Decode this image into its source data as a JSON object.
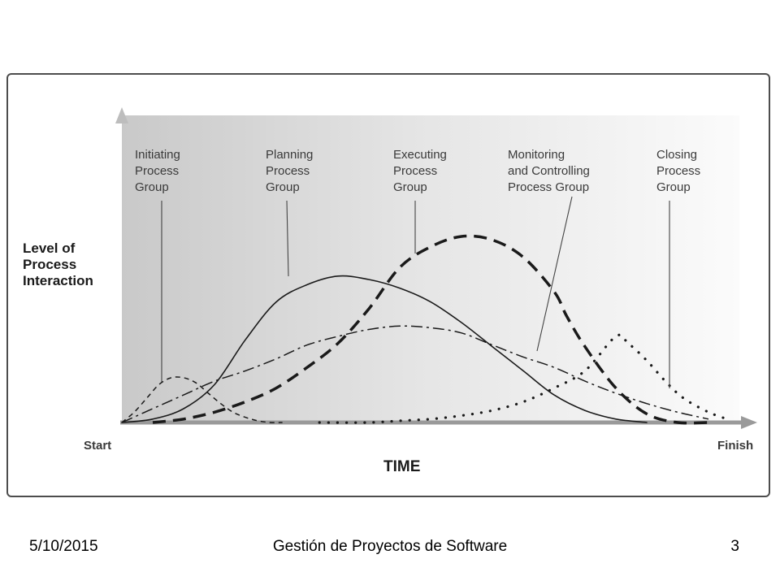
{
  "chart_data": {
    "type": "line",
    "ylabel": [
      "Level of",
      "Process",
      "Interaction"
    ],
    "xlabel": "TIME",
    "x_start_label": "Start",
    "x_end_label": "Finish",
    "series": [
      {
        "name": [
          "Initiating",
          "Process",
          "Group"
        ],
        "style": "dashed",
        "x": [
          0,
          2,
          4,
          6,
          8,
          10,
          12,
          14,
          16,
          18,
          20,
          22,
          24,
          26
        ],
        "y": [
          0,
          6,
          14,
          22,
          26,
          26,
          23,
          17,
          11,
          6,
          3,
          1,
          0,
          0
        ]
      },
      {
        "name": [
          "Planning",
          "Process",
          "Group"
        ],
        "style": "solid",
        "x": [
          0,
          5,
          10,
          15,
          20,
          25,
          30,
          35,
          40,
          45,
          50,
          55,
          60,
          65,
          70,
          75,
          80,
          85
        ],
        "y": [
          0,
          2,
          8,
          22,
          48,
          70,
          80,
          85,
          83,
          78,
          70,
          58,
          44,
          30,
          16,
          7,
          2,
          0
        ]
      },
      {
        "name": [
          "Executing",
          "Process",
          "Group"
        ],
        "style": "long-dash",
        "x": [
          5,
          10,
          15,
          20,
          25,
          30,
          35,
          40,
          45,
          50,
          55,
          60,
          65,
          70,
          72,
          75,
          80,
          85,
          90,
          95
        ],
        "y": [
          0,
          2,
          6,
          12,
          20,
          32,
          46,
          66,
          90,
          102,
          108,
          106,
          96,
          76,
          62,
          44,
          20,
          5,
          0,
          0
        ]
      },
      {
        "name": [
          "Monitoring",
          "and Controlling",
          "Process Group"
        ],
        "style": "dash-dot",
        "x": [
          0,
          5,
          10,
          15,
          20,
          25,
          30,
          35,
          40,
          45,
          50,
          55,
          60,
          65,
          70,
          75,
          80,
          85,
          90,
          95
        ],
        "y": [
          0,
          8,
          16,
          24,
          30,
          37,
          45,
          50,
          54,
          56,
          55,
          52,
          45,
          38,
          32,
          24,
          17,
          11,
          6,
          2
        ]
      },
      {
        "name": [
          "Closing",
          "Process",
          "Group"
        ],
        "style": "dotted",
        "x": [
          32,
          40,
          45,
          50,
          55,
          60,
          65,
          70,
          75,
          80,
          82,
          85,
          88,
          91,
          95,
          98
        ],
        "y": [
          0,
          0,
          1,
          2,
          4,
          7,
          12,
          20,
          30,
          50,
          46,
          36,
          24,
          14,
          6,
          2
        ]
      }
    ]
  },
  "footer": {
    "date": "5/10/2015",
    "title": "Gestión de Proyectos de Software",
    "page": "3"
  }
}
